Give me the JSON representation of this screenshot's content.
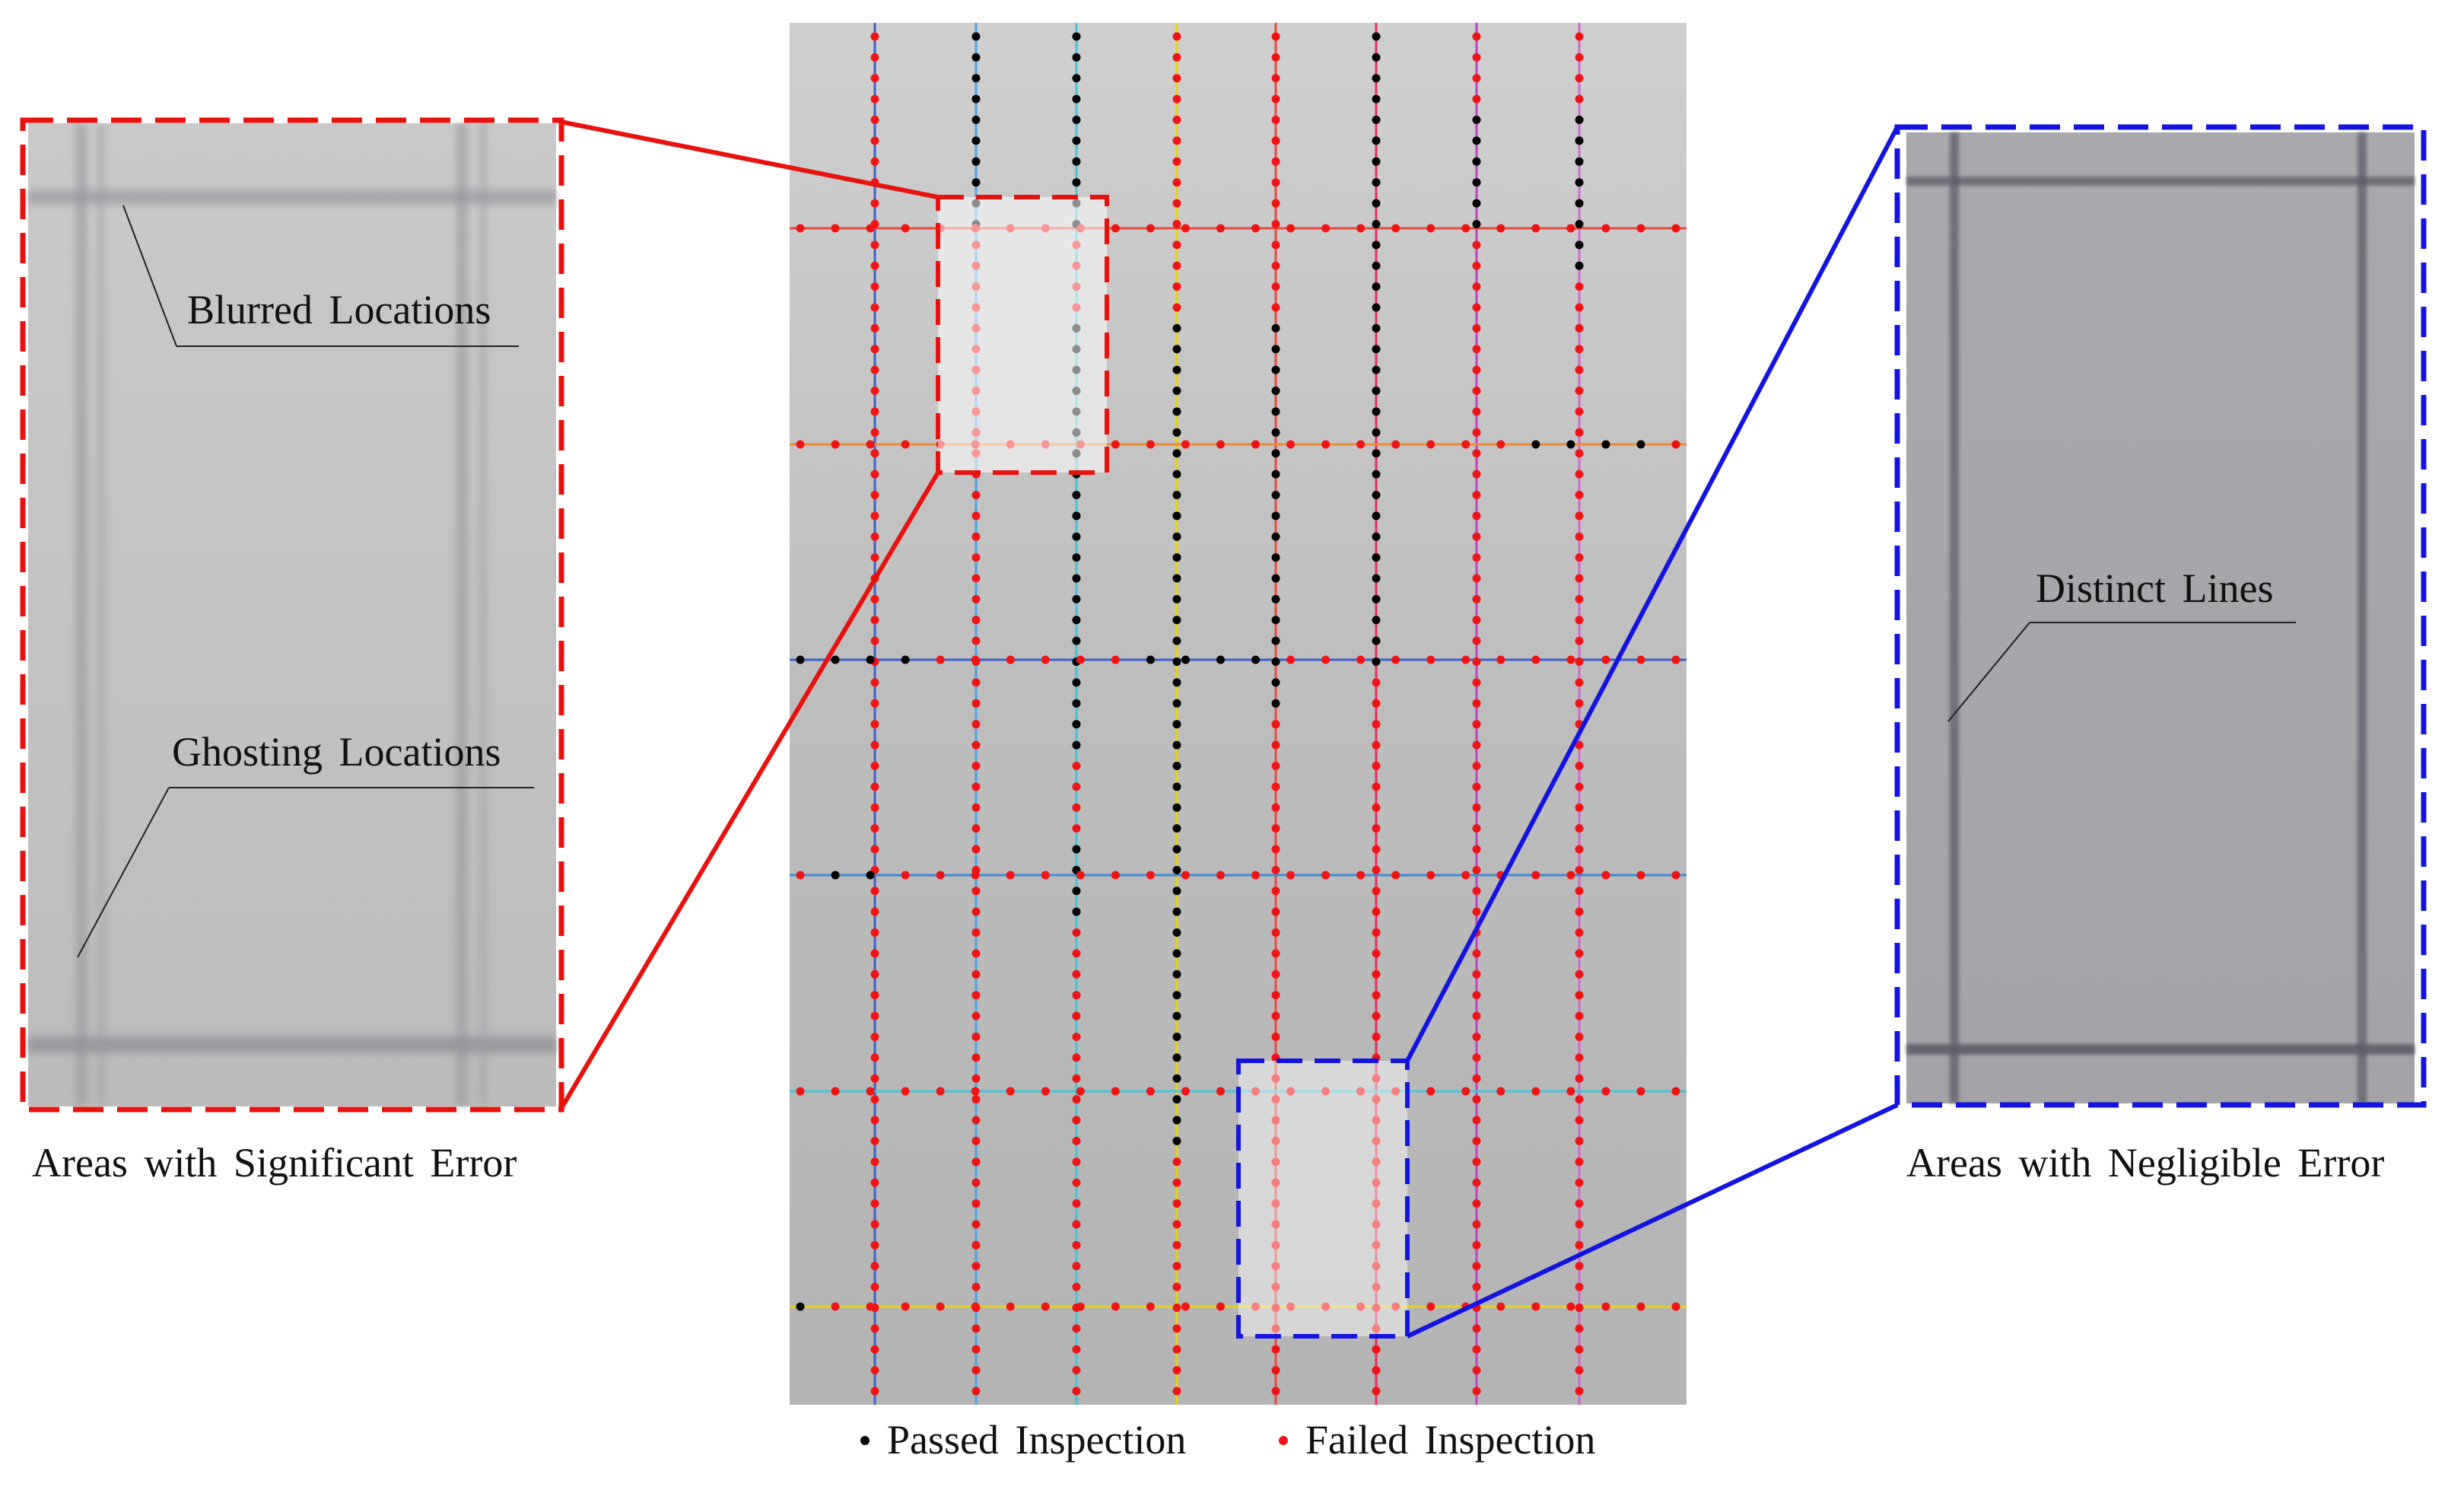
{
  "left_panel": {
    "caption": "Areas with Significant Error",
    "annotation_blurred": "Blurred Locations",
    "annotation_ghosting": "Ghosting Locations",
    "frame_color": "#e8120c"
  },
  "right_panel": {
    "caption": "Areas with Negligible Error",
    "annotation_distinct": "Distinct Lines",
    "frame_color": "#1414e0"
  },
  "legend": {
    "passed": {
      "label": "Passed Inspection",
      "color": "#000000"
    },
    "failed": {
      "label": "Failed Inspection",
      "color": "#f01414"
    }
  },
  "grid_line_colors": {
    "vertical": [
      "#3a5fd0",
      "#4fa3e0",
      "#43c6d6",
      "#e6d21a",
      "#e84a3c",
      "#e03060",
      "#c040c0",
      "#d06ad0"
    ],
    "horizontal": [
      "#e84a3c",
      "#f08a30",
      "#3a5fd0",
      "#3a8ad8",
      "#43c6d6",
      "#e6d21a"
    ]
  },
  "dots": {
    "vertical": [
      "FFFFFFFFFFFFFFFFFFFFFFFFFFFFFFFFFFFFFFFFFFFFFFFFFFFFFFFFFFFFFFFFFF",
      "PPPPPPPPPPFFFFFFFFFFFFFFFFFFFFFFFFFFFFFFFFFFFFFFFFFFFFFFFFFFFFFFFF",
      "PPPPPPPPPPFFFFPPPPPPPPPPPPPPPPPPPPPFFFFPPPPFFFFFFFFFFFFFFFFFFFFFFF",
      "FFFFFFFFFFFFFFPPPPPPPPPPPPPPPPPPPPPPPPPPPPPPPPPPPPPPPPFFFFFFFFFFFF",
      "FFFFFFFFFFFFFFPPPPPPPPPPPPPPPPPPPFFFFFFFFFFFFFFFFFFFFFFFFFFFFFFFFF",
      "PPPPPPPPPPPPPPPPPPPPPPPPPPPPPPPFFFFFFFFFFFFFFFFFFFFFFFFFFFFFFFFFFF",
      "FFFFPPPPPPFFFFFFFFFFFFFFFFFFFFFFFFFFFFFFFFFFFFFFFFFFFFFFFFFFFFFFFF",
      "FFFFPPPPPPPPFFFFFFFFFFFFFFFFFFFFFFFFFFFFFFFFFFFFFFFFFFFFFFFFFFFFFF"
    ],
    "horizontal": [
      "FFFFFFFFFFFFFFFFFFFFFFFFFF",
      "FFFFFFFFFFFFFFFFFFFFFPPPPF",
      "PPPPFFFFFFPPPPFFFFFFFFFFFF",
      "FPPFFFFFFFFFFFFFFFFFFFFFFF",
      "FFFFFFFFFFFFFFFFFFFFFFFFFF",
      "PFFFFFFFFFFFFFFFFFFFFFFFFF"
    ]
  }
}
